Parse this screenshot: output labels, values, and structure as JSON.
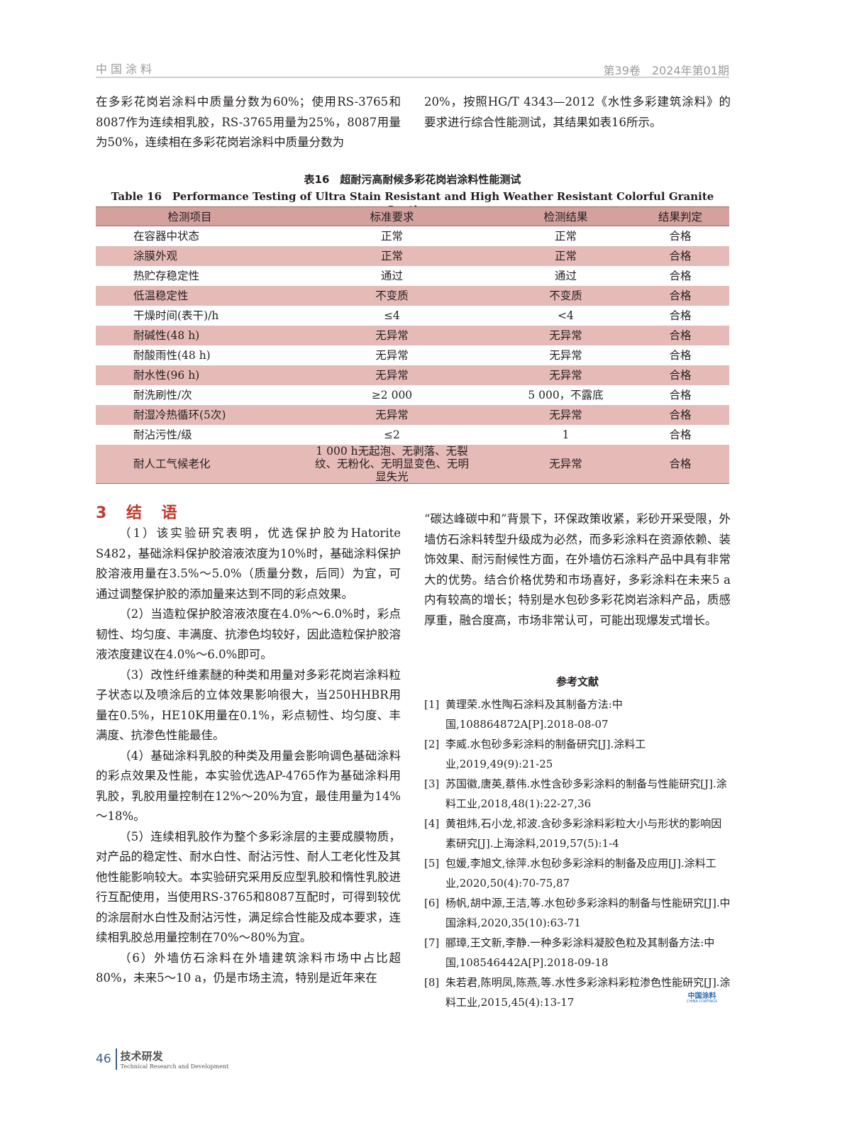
{
  "header": {
    "journal": "中国涂料",
    "issue": "第39卷　2024年第01期"
  },
  "intro": {
    "left": "在多彩花岗岩涂料中质量分数为60%；使用RS-3765和8087作为连续相乳胶，RS-3765用量为25%，8087用量为50%，连续相在多彩花岗岩涂料中质量分数为",
    "right": "20%，按照HG/T 4343—2012《水性多彩建筑涂料》的要求进行综合性能测试，其结果如表16所示。"
  },
  "table": {
    "caption_cn": "表16　超耐污高耐候多彩花岗岩涂料性能测试",
    "caption_en": "Table 16　Performance Testing of Ultra Stain Resistant and High Weather Resistant Colorful Granite Coatings",
    "headers": [
      "检测项目",
      "标准要求",
      "检测结果",
      "结果判定"
    ],
    "rows": [
      [
        "在容器中状态",
        "正常",
        "正常",
        "合格"
      ],
      [
        "涂膜外观",
        "正常",
        "正常",
        "合格"
      ],
      [
        "热贮存稳定性",
        "通过",
        "通过",
        "合格"
      ],
      [
        "低温稳定性",
        "不变质",
        "不变质",
        "合格"
      ],
      [
        "干燥时间(表干)/h",
        "≤4",
        "<4",
        "合格"
      ],
      [
        "耐碱性(48 h)",
        "无异常",
        "无异常",
        "合格"
      ],
      [
        "耐酸雨性(48 h)",
        "无异常",
        "无异常",
        "合格"
      ],
      [
        "耐水性(96 h)",
        "无异常",
        "无异常",
        "合格"
      ],
      [
        "耐洗刷性/次",
        "≥2 000",
        "5 000，不露底",
        "合格"
      ],
      [
        "耐湿冷热循环(5次)",
        "无异常",
        "无异常",
        "合格"
      ],
      [
        "耐沾污性/级",
        "≤2",
        "1",
        "合格"
      ],
      [
        "耐人工气候老化",
        "1 000 h无起泡、无剥落、无裂纹、无粉化、无明显变色、无明显失光",
        "无异常",
        "合格"
      ]
    ]
  },
  "section": {
    "title": "3 结 语",
    "paras": [
      "（1）该实验研究表明，优选保护胶为Hatorite S482，基础涂料保护胶溶液浓度为10%时，基础涂料保护胶溶液用量在3.5%～5.0%（质量分数，后同）为宜，可通过调整保护胶的添加量来达到不同的彩点效果。",
      "（2）当造粒保护胶溶液浓度在4.0%～6.0%时，彩点韧性、均匀度、丰满度、抗渗色均较好，因此造粒保护胶溶液浓度建议在4.0%～6.0%即可。",
      "（3）改性纤维素醚的种类和用量对多彩花岗岩涂料粒子状态以及喷涂后的立体效果影响很大，当250HHBR用量在0.5%，HE10K用量在0.1%，彩点韧性、均匀度、丰满度、抗渗色性能最佳。",
      "（4）基础涂料乳胶的种类及用量会影响调色基础涂料的彩点效果及性能，本实验优选AP-4765作为基础涂料用乳胶，乳胶用量控制在12%～20%为宜，最佳用量为14%～18%。",
      "（5）连续相乳胶作为整个多彩涂层的主要成膜物质，对产品的稳定性、耐水白性、耐沾污性、耐人工老化性及其他性能影响较大。本实验研究采用反应型乳胶和惰性乳胶进行互配使用，当使用RS-3765和8087互配时，可得到较优的涂层耐水白性及耐沾污性，满足综合性能及成本要求，连续相乳胶总用量控制在70%～80%为宜。",
      "（6）外墙仿石涂料在外墙建筑涂料市场中占比超80%，未来5～10 a，仍是市场主流，特别是近年来在"
    ],
    "right_para": "“碳达峰碳中和”背景下，环保政策收紧，彩砂开采受限，外墙仿石涂料转型升级成为必然，而多彩涂料在资源依赖、装饰效果、耐污耐候性方面，在外墙仿石涂料产品中具有非常大的优势。结合价格优势和市场喜好，多彩涂料在未来5 a内有较高的增长；特别是水包砂多彩花岗岩涂料产品，质感厚重，融合度高，市场非常认可，可能出现爆发式增长。"
  },
  "references": {
    "title": "参考文献",
    "items": [
      {
        "n": "[1]",
        "t": "黄理荣.水性陶石涂料及其制备方法:中国,108864872A[P].2018-08-07"
      },
      {
        "n": "[2]",
        "t": "李威.水包砂多彩涂料的制备研究[J].涂料工业,2019,49(9):21-25"
      },
      {
        "n": "[3]",
        "t": "苏国徽,唐英,蔡伟.水性含砂多彩涂料的制备与性能研究[J].涂料工业,2018,48(1):22-27,36"
      },
      {
        "n": "[4]",
        "t": "黄祖炜,石小龙,祁波.含砂多彩涂料彩粒大小与形状的影响因素研究[J].上海涂料,2019,57(5):1-4"
      },
      {
        "n": "[5]",
        "t": "包媛,李旭文,徐萍.水包砂多彩涂料的制备及应用[J].涂料工业,2020,50(4):70-75,87"
      },
      {
        "n": "[6]",
        "t": "杨帆,胡中源,王洁,等.水包砂多彩涂料的制备与性能研究[J].中国涂料,2020,35(10):63-71"
      },
      {
        "n": "[7]",
        "t": "郦璋,王文新,李静.一种多彩涂料凝胶色粒及其制备方法:中国,108546442A[P].2018-09-18"
      },
      {
        "n": "[8]",
        "t": "朱若君,陈明凤,陈燕,等.水性多彩涂料彩粒渗色性能研究[J].涂料工业,2015,45(4):13-17"
      }
    ]
  },
  "logo": {
    "cn": "中国涂料",
    "en": "CHINA COATINGS"
  },
  "footer": {
    "page": "46",
    "section_cn": "技术研发",
    "section_en": "Technical Research and Development"
  },
  "colors": {
    "table_header": "#d5a19d",
    "table_alt_row": "#e6bbb7",
    "section_title": "#c0392b"
  }
}
